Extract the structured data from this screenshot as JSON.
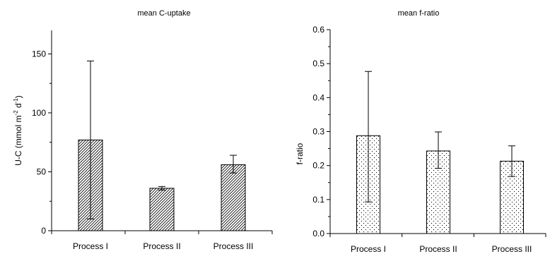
{
  "chart_data": [
    {
      "type": "bar",
      "title": "mean C-uptake",
      "ylabel_parts": [
        "U-C (mmol m",
        "-2",
        " d",
        "-1",
        ")"
      ],
      "xlabel": "",
      "categories": [
        "Process I",
        "Process II",
        "Process III"
      ],
      "values": [
        77,
        36,
        56
      ],
      "error_low": [
        10,
        34.5,
        49
      ],
      "error_high": [
        144,
        37.5,
        64
      ],
      "ylim": [
        0,
        170
      ],
      "yticks": [
        0,
        50,
        100,
        150
      ],
      "ytick_labels": [
        "0",
        "50",
        "100",
        "150"
      ],
      "minor_ticks": [
        25,
        75,
        125
      ],
      "pattern": "diagonal-hatch",
      "grid": false
    },
    {
      "type": "bar",
      "title": "mean f-ratio",
      "ylabel": "f-ratio",
      "xlabel": "",
      "categories": [
        "Process I",
        "Process II",
        "Process III"
      ],
      "values": [
        0.288,
        0.243,
        0.213
      ],
      "error_low": [
        0.093,
        0.192,
        0.168
      ],
      "error_high": [
        0.477,
        0.299,
        0.258
      ],
      "ylim": [
        0,
        0.6
      ],
      "yticks": [
        0,
        0.1,
        0.2,
        0.3,
        0.4,
        0.5,
        0.6
      ],
      "ytick_labels": [
        "0.0",
        "0.1",
        "0.2",
        "0.3",
        "0.4",
        "0.5",
        "0.6"
      ],
      "minor_ticks": [
        0.05,
        0.15,
        0.25,
        0.35,
        0.45,
        0.55
      ],
      "pattern": "dots",
      "grid": false
    }
  ]
}
